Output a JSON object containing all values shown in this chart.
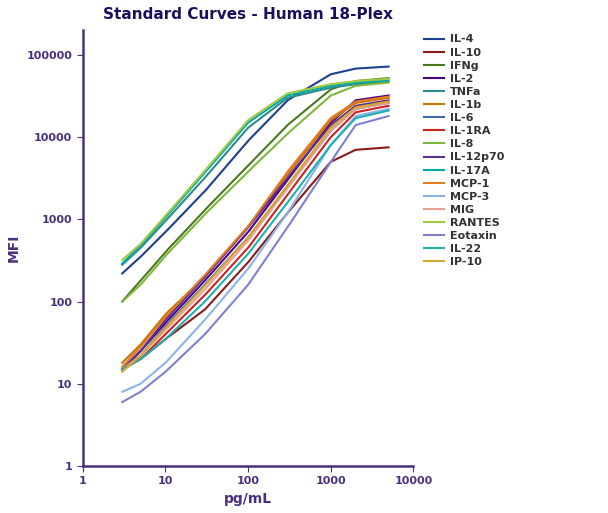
{
  "title": "Standard Curves - Human 18-Plex",
  "xlabel": "pg/mL",
  "ylabel": "MFI",
  "xlim": [
    1,
    10000
  ],
  "ylim": [
    1,
    200000
  ],
  "spine_color": "#4b3080",
  "label_color": "#4b3080",
  "title_color": "#1a1060",
  "tick_color": "#4b3080",
  "series": [
    {
      "name": "IL-4",
      "color": "#1f3f8f",
      "x": [
        3,
        5,
        10,
        30,
        100,
        300,
        1000,
        2000,
        5000
      ],
      "y": [
        220,
        350,
        700,
        2200,
        9000,
        28000,
        58000,
        68000,
        72000
      ]
    },
    {
      "name": "IL-10",
      "color": "#8B1a1a",
      "x": [
        3,
        5,
        10,
        30,
        100,
        300,
        1000,
        2000,
        5000
      ],
      "y": [
        15,
        20,
        35,
        80,
        300,
        1200,
        5000,
        7000,
        7500
      ]
    },
    {
      "name": "IFNg",
      "color": "#4a7a1e",
      "x": [
        3,
        5,
        10,
        30,
        100,
        300,
        1000,
        2000,
        5000
      ],
      "y": [
        100,
        180,
        400,
        1300,
        4500,
        14000,
        38000,
        48000,
        52000
      ]
    },
    {
      "name": "IL-2",
      "color": "#4b0082",
      "x": [
        3,
        5,
        10,
        30,
        100,
        300,
        1000,
        2000,
        5000
      ],
      "y": [
        15,
        25,
        55,
        180,
        700,
        3000,
        15000,
        28000,
        32000
      ]
    },
    {
      "name": "TNFa",
      "color": "#2e8b8b",
      "x": [
        3,
        5,
        10,
        30,
        100,
        300,
        1000,
        2000,
        5000
      ],
      "y": [
        280,
        450,
        950,
        3200,
        13000,
        30000,
        40000,
        44000,
        47000
      ]
    },
    {
      "name": "IL-1b",
      "color": "#c8720a",
      "x": [
        3,
        5,
        10,
        30,
        100,
        300,
        1000,
        2000,
        5000
      ],
      "y": [
        18,
        30,
        70,
        200,
        800,
        3500,
        16000,
        26000,
        30000
      ]
    },
    {
      "name": "IL-6",
      "color": "#4169b0",
      "x": [
        3,
        5,
        10,
        30,
        100,
        300,
        1000,
        2000,
        5000
      ],
      "y": [
        15,
        22,
        50,
        160,
        600,
        2500,
        12000,
        22000,
        26000
      ]
    },
    {
      "name": "IL-1RA",
      "color": "#cc2222",
      "x": [
        3,
        5,
        10,
        30,
        100,
        300,
        1000,
        2000,
        5000
      ],
      "y": [
        15,
        20,
        40,
        120,
        450,
        2000,
        10000,
        20000,
        24000
      ]
    },
    {
      "name": "IL-8",
      "color": "#7db83a",
      "x": [
        3,
        5,
        10,
        30,
        100,
        300,
        1000,
        2000,
        5000
      ],
      "y": [
        100,
        160,
        360,
        1150,
        3800,
        11000,
        32000,
        42000,
        46000
      ]
    },
    {
      "name": "IL-12p70",
      "color": "#5c2d91",
      "x": [
        3,
        5,
        10,
        30,
        100,
        300,
        1000,
        2000,
        5000
      ],
      "y": [
        15,
        25,
        60,
        200,
        800,
        3200,
        14000,
        24000,
        28000
      ]
    },
    {
      "name": "IL-17A",
      "color": "#00aaaa",
      "x": [
        3,
        5,
        10,
        30,
        100,
        300,
        1000,
        2000,
        5000
      ],
      "y": [
        290,
        480,
        1050,
        3700,
        15000,
        32000,
        42000,
        46000,
        49000
      ]
    },
    {
      "name": "MCP-1",
      "color": "#e07b20",
      "x": [
        3,
        5,
        10,
        30,
        100,
        300,
        1000,
        2000,
        5000
      ],
      "y": [
        16,
        28,
        65,
        210,
        820,
        3800,
        17000,
        27000,
        31000
      ]
    },
    {
      "name": "MCP-3",
      "color": "#8ab4e8",
      "x": [
        3,
        5,
        10,
        30,
        100,
        300,
        1000,
        2000,
        5000
      ],
      "y": [
        8,
        10,
        18,
        60,
        250,
        1200,
        8000,
        18000,
        22000
      ]
    },
    {
      "name": "MIG",
      "color": "#e8a090",
      "x": [
        3,
        5,
        10,
        30,
        100,
        300,
        1000,
        2000,
        5000
      ],
      "y": [
        15,
        22,
        45,
        140,
        550,
        2400,
        12000,
        22000,
        26000
      ]
    },
    {
      "name": "RANTES",
      "color": "#a0c840",
      "x": [
        3,
        5,
        10,
        30,
        100,
        300,
        1000,
        2000,
        5000
      ],
      "y": [
        320,
        500,
        1100,
        3900,
        16000,
        34000,
        44000,
        48000,
        51000
      ]
    },
    {
      "name": "Eotaxin",
      "color": "#8080d0",
      "x": [
        3,
        5,
        10,
        30,
        100,
        300,
        1000,
        2000,
        5000
      ],
      "y": [
        6,
        8,
        14,
        40,
        160,
        800,
        5000,
        14000,
        18000
      ]
    },
    {
      "name": "IL-22",
      "color": "#20b0b0",
      "x": [
        3,
        5,
        10,
        30,
        100,
        300,
        1000,
        2000,
        5000
      ],
      "y": [
        15,
        20,
        35,
        100,
        380,
        1600,
        8000,
        17000,
        21000
      ]
    },
    {
      "name": "IP-10",
      "color": "#d4a830",
      "x": [
        3,
        5,
        10,
        30,
        100,
        300,
        1000,
        2000,
        5000
      ],
      "y": [
        14,
        22,
        48,
        155,
        600,
        2600,
        13000,
        23000,
        27000
      ]
    }
  ]
}
